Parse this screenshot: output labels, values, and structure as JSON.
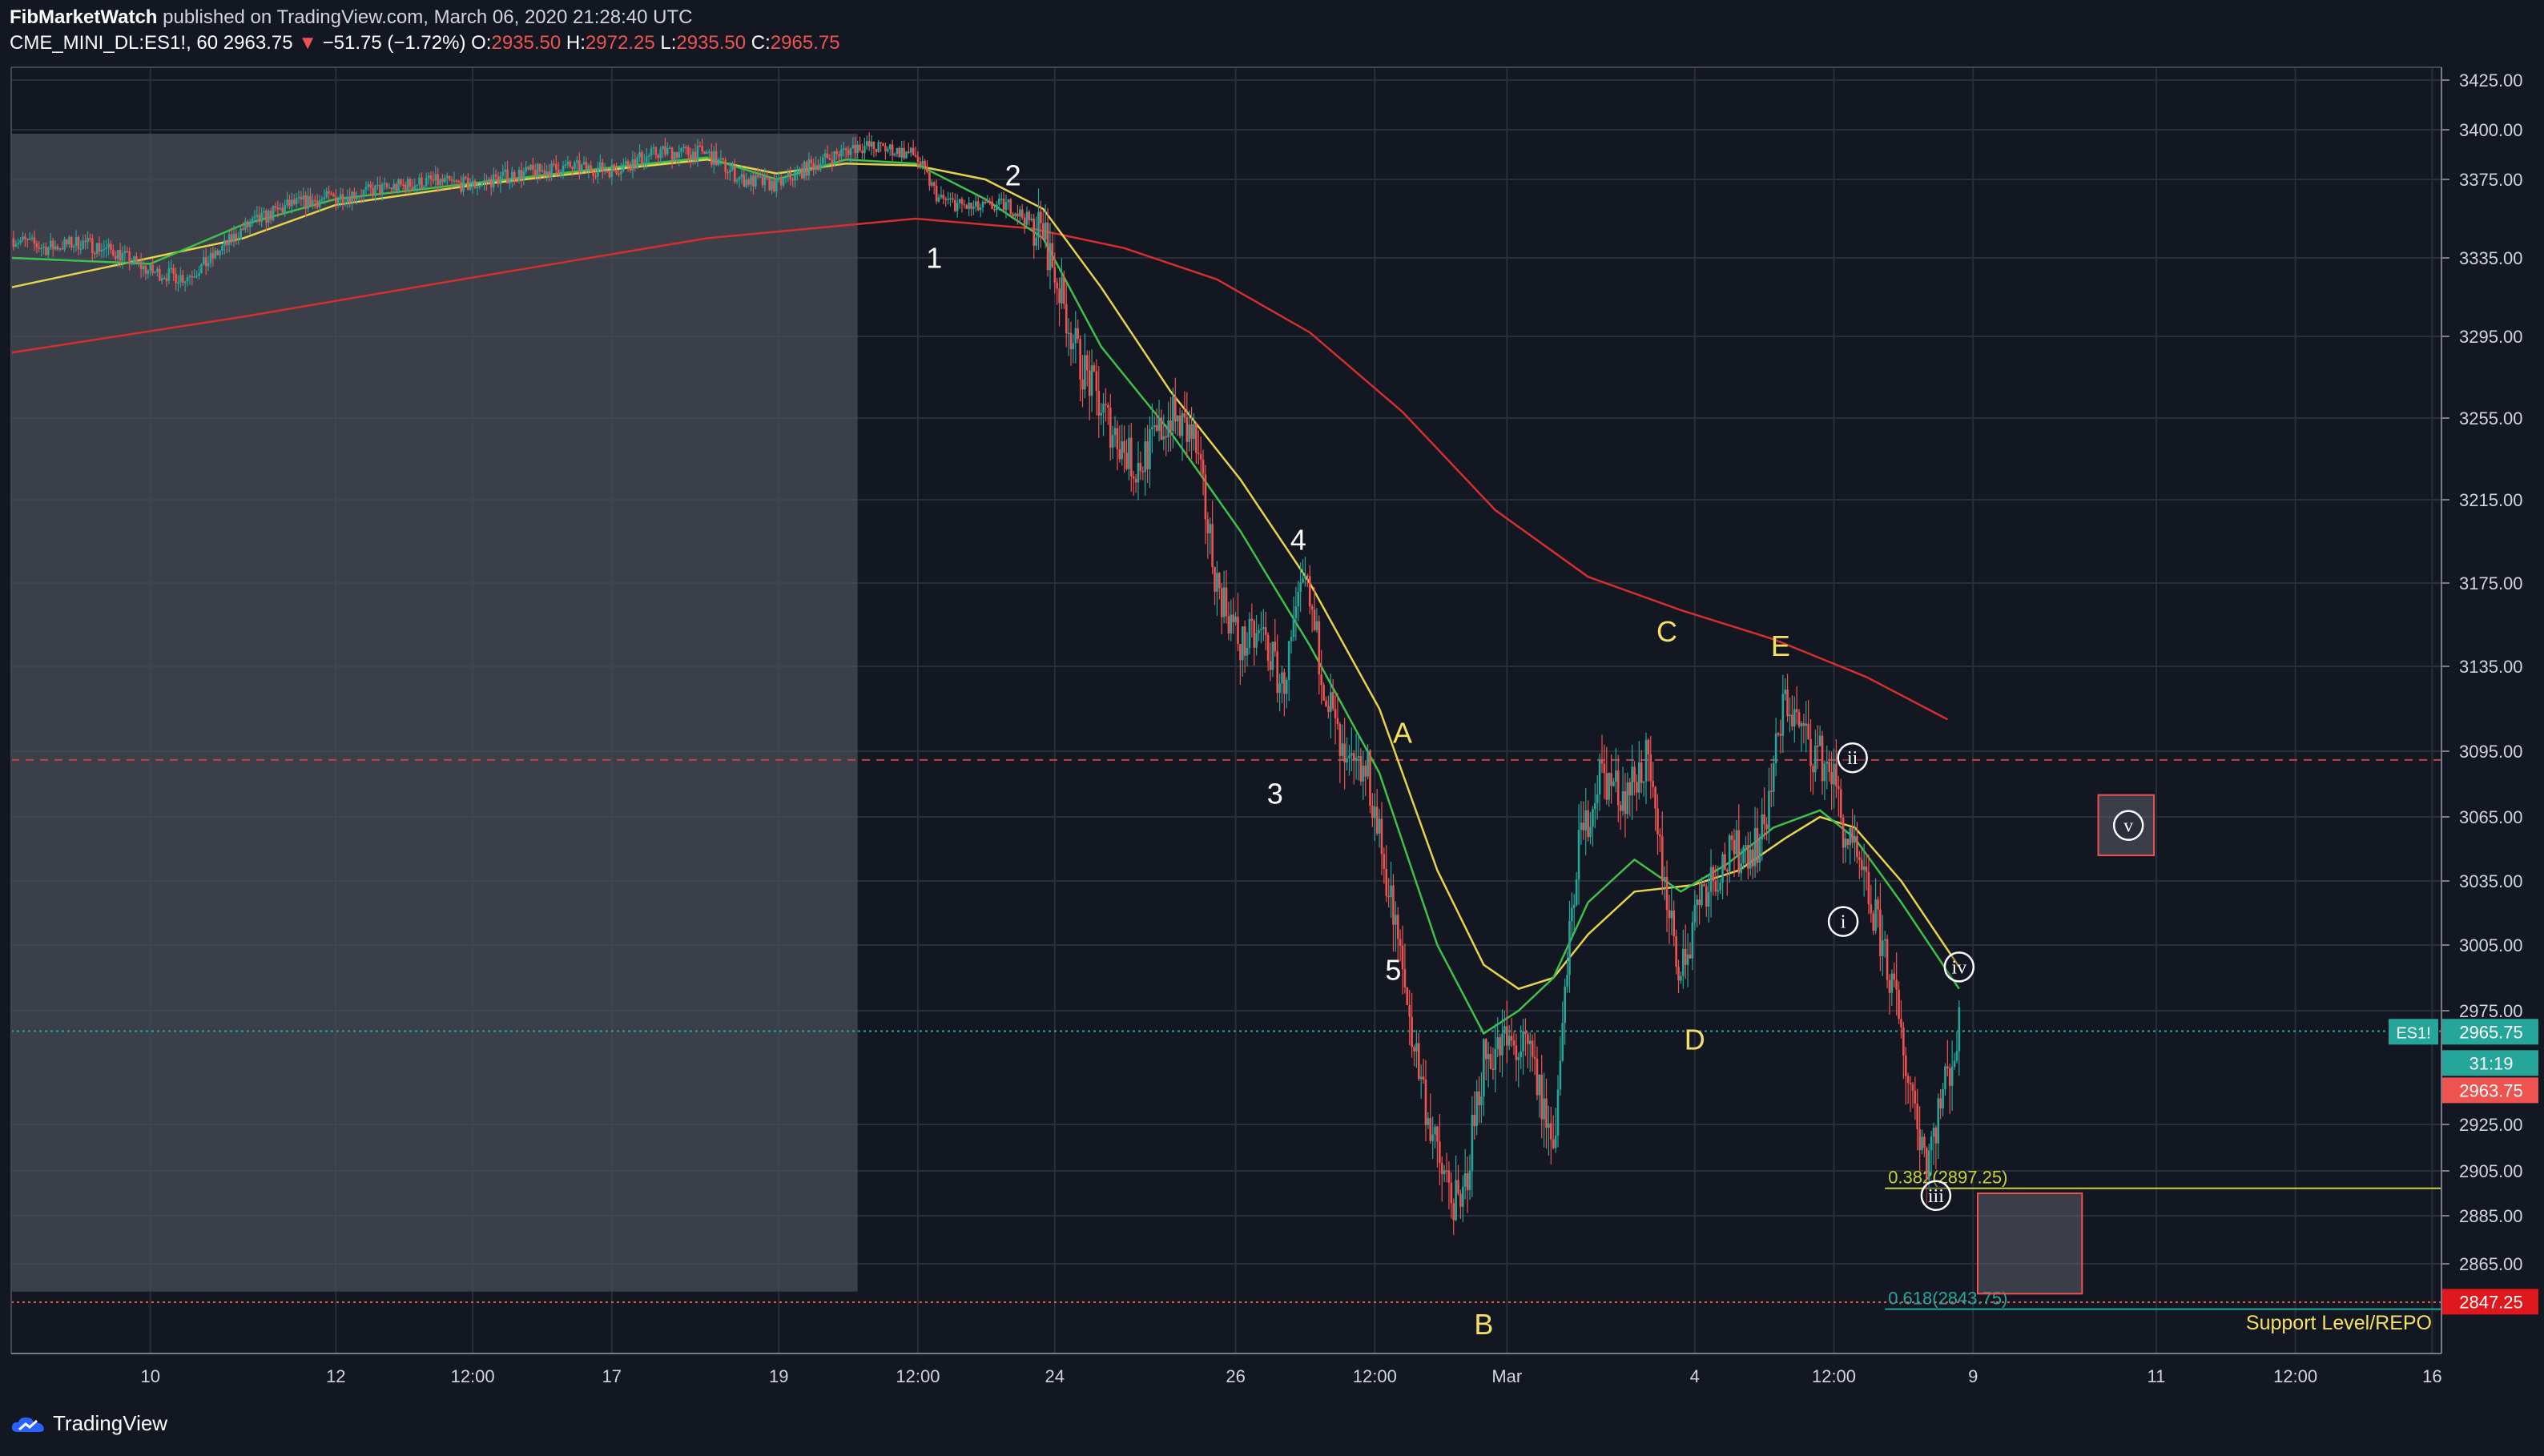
{
  "header": {
    "author": "FibMarketWatch",
    "published_text": "published on TradingView.com, March 06, 2020 21:28:40 UTC",
    "symbol": "CME_MINI_DL:ES1!, 60",
    "last": "2963.75",
    "change": "−51.75 (−1.72%)",
    "o_label": "O:",
    "o_value": "2935.50",
    "h_label": "H:",
    "h_value": "2972.25",
    "l_label": "L:",
    "l_value": "2935.50",
    "c_label": "C:",
    "c_value": "2965.75"
  },
  "footer": {
    "brand": "TradingView"
  },
  "colors": {
    "up": "#26a69a",
    "down": "#ef5350",
    "ma_red": "#d32f2f",
    "ma_yellow": "#e6d34c",
    "ma_green": "#3cc24a",
    "background": "#131722"
  },
  "chart_data": {
    "type": "candlestick",
    "ylim": [
      2825,
      3430
    ],
    "y_ticks": [
      3425,
      3400,
      3375,
      3335,
      3295,
      3255,
      3215,
      3175,
      3135,
      3095,
      3065,
      3035,
      3005,
      2975,
      2925,
      2905,
      2885,
      2865
    ],
    "y_tick_labels": [
      "3425.00",
      "3400.00",
      "3375.00",
      "3335.00",
      "3295.00",
      "3255.00",
      "3215.00",
      "3175.00",
      "3135.00",
      "3095.00",
      "3065.00",
      "3035.00",
      "3005.00",
      "2975.00",
      "2925.00",
      "2905.00",
      "2885.00",
      "2865.00"
    ],
    "x_ticks": [
      {
        "label": "10",
        "t": 60
      },
      {
        "label": "12",
        "t": 140
      },
      {
        "label": "12:00",
        "t": 199
      },
      {
        "label": "17",
        "t": 259
      },
      {
        "label": "19",
        "t": 331
      },
      {
        "label": "12:00",
        "t": 391
      },
      {
        "label": "24",
        "t": 450
      },
      {
        "label": "26",
        "t": 528
      },
      {
        "label": "12:00",
        "t": 588
      },
      {
        "label": "Mar",
        "t": 645
      },
      {
        "label": "4",
        "t": 726
      },
      {
        "label": "12:00",
        "t": 786
      },
      {
        "label": "9",
        "t": 846
      },
      {
        "label": "11",
        "t": 925
      },
      {
        "label": "12:00",
        "t": 985
      },
      {
        "label": "16",
        "t": 1044
      }
    ],
    "price_path": [
      [
        0,
        3345
      ],
      [
        15,
        3340
      ],
      [
        30,
        3343
      ],
      [
        45,
        3338
      ],
      [
        60,
        3328
      ],
      [
        75,
        3325
      ],
      [
        85,
        3333
      ],
      [
        100,
        3350
      ],
      [
        120,
        3362
      ],
      [
        140,
        3366
      ],
      [
        160,
        3370
      ],
      [
        180,
        3374
      ],
      [
        199,
        3372
      ],
      [
        215,
        3377
      ],
      [
        240,
        3381
      ],
      [
        259,
        3380
      ],
      [
        280,
        3389
      ],
      [
        300,
        3388
      ],
      [
        315,
        3375
      ],
      [
        330,
        3372
      ],
      [
        345,
        3382
      ],
      [
        365,
        3392
      ],
      [
        380,
        3390
      ],
      [
        390,
        3387
      ],
      [
        400,
        3365
      ],
      [
        415,
        3360
      ],
      [
        430,
        3362
      ],
      [
        445,
        3348
      ],
      [
        460,
        3285
      ],
      [
        472,
        3255
      ],
      [
        485,
        3230
      ],
      [
        500,
        3256
      ],
      [
        510,
        3245
      ],
      [
        520,
        3175
      ],
      [
        530,
        3145
      ],
      [
        540,
        3150
      ],
      [
        548,
        3125
      ],
      [
        558,
        3175
      ],
      [
        565,
        3135
      ],
      [
        575,
        3085
      ],
      [
        585,
        3085
      ],
      [
        595,
        3025
      ],
      [
        605,
        2960
      ],
      [
        615,
        2910
      ],
      [
        625,
        2885
      ],
      [
        635,
        2955
      ],
      [
        645,
        2960
      ],
      [
        655,
        2955
      ],
      [
        665,
        2915
      ],
      [
        675,
        3045
      ],
      [
        685,
        3085
      ],
      [
        695,
        3075
      ],
      [
        705,
        3090
      ],
      [
        710,
        3055
      ],
      [
        720,
        2990
      ],
      [
        728,
        3030
      ],
      [
        740,
        3045
      ],
      [
        755,
        3055
      ],
      [
        765,
        3120
      ],
      [
        775,
        3098
      ],
      [
        785,
        3087
      ],
      [
        790,
        3060
      ],
      [
        800,
        3030
      ],
      [
        808,
        3002
      ],
      [
        818,
        2948
      ],
      [
        826,
        2910
      ],
      [
        832,
        2935
      ],
      [
        840,
        2966
      ]
    ],
    "ma_red": [
      [
        0,
        3287
      ],
      [
        100,
        3305
      ],
      [
        199,
        3325
      ],
      [
        300,
        3345
      ],
      [
        390,
        3355
      ],
      [
        440,
        3350
      ],
      [
        480,
        3340
      ],
      [
        520,
        3324
      ],
      [
        560,
        3297
      ],
      [
        600,
        3258
      ],
      [
        640,
        3210
      ],
      [
        680,
        3178
      ],
      [
        720,
        3162
      ],
      [
        760,
        3148
      ],
      [
        800,
        3130
      ],
      [
        835,
        3110
      ]
    ],
    "ma_yellow": [
      [
        0,
        3320
      ],
      [
        60,
        3335
      ],
      [
        100,
        3345
      ],
      [
        140,
        3362
      ],
      [
        199,
        3372
      ],
      [
        259,
        3380
      ],
      [
        300,
        3385
      ],
      [
        330,
        3378
      ],
      [
        360,
        3383
      ],
      [
        390,
        3382
      ],
      [
        420,
        3375
      ],
      [
        445,
        3360
      ],
      [
        470,
        3320
      ],
      [
        500,
        3268
      ],
      [
        530,
        3225
      ],
      [
        560,
        3175
      ],
      [
        590,
        3115
      ],
      [
        615,
        3040
      ],
      [
        635,
        2996
      ],
      [
        650,
        2985
      ],
      [
        665,
        2990
      ],
      [
        680,
        3010
      ],
      [
        700,
        3030
      ],
      [
        725,
        3033
      ],
      [
        745,
        3040
      ],
      [
        765,
        3055
      ],
      [
        780,
        3065
      ],
      [
        795,
        3060
      ],
      [
        815,
        3035
      ],
      [
        840,
        2995
      ]
    ],
    "ma_green": [
      [
        0,
        3335
      ],
      [
        60,
        3332
      ],
      [
        100,
        3352
      ],
      [
        140,
        3365
      ],
      [
        199,
        3373
      ],
      [
        259,
        3381
      ],
      [
        300,
        3386
      ],
      [
        330,
        3375
      ],
      [
        360,
        3385
      ],
      [
        390,
        3383
      ],
      [
        420,
        3365
      ],
      [
        445,
        3345
      ],
      [
        470,
        3290
      ],
      [
        500,
        3248
      ],
      [
        530,
        3200
      ],
      [
        560,
        3145
      ],
      [
        590,
        3085
      ],
      [
        615,
        3005
      ],
      [
        635,
        2965
      ],
      [
        650,
        2975
      ],
      [
        665,
        2990
      ],
      [
        680,
        3025
      ],
      [
        700,
        3045
      ],
      [
        720,
        3030
      ],
      [
        740,
        3043
      ],
      [
        760,
        3060
      ],
      [
        780,
        3068
      ],
      [
        795,
        3055
      ],
      [
        815,
        3025
      ],
      [
        840,
        2985
      ]
    ],
    "hlines": [
      {
        "price": 3091,
        "style": "dashed",
        "color": "#c0414a"
      },
      {
        "price": 2966,
        "style": "dotted",
        "color": "#26a69a"
      },
      {
        "price": 2847,
        "style": "dotted",
        "color": "#ef5350"
      }
    ],
    "fib_lines": [
      {
        "price": 2897.25,
        "label": "0.382(2897.25)",
        "color": "#c6d13a",
        "t_from": 808
      },
      {
        "price": 2843.75,
        "label": "0.618(2843.75)",
        "color": "#26a69a",
        "t_from": 808
      }
    ],
    "support_label": "Support Level/REPO",
    "shaded_region": {
      "t_from": 0,
      "t_to": 365,
      "price_top": 3398,
      "price_bottom": 2852
    },
    "boxes": [
      {
        "t_from": 848,
        "t_to": 893,
        "price_top": 2895,
        "price_bottom": 2851
      },
      {
        "t_from": 900,
        "t_to": 924,
        "price_top": 3075,
        "price_bottom": 3047
      }
    ],
    "labels": [
      {
        "text": "1",
        "t": 398,
        "price": 3330,
        "color": "#ffffff"
      },
      {
        "text": "2",
        "t": 432,
        "price": 3372,
        "color": "#ffffff"
      },
      {
        "text": "3",
        "t": 545,
        "price": 3071,
        "color": "#ffffff"
      },
      {
        "text": "4",
        "t": 555,
        "price": 3191,
        "color": "#ffffff"
      },
      {
        "text": "5",
        "t": 596,
        "price": 2989,
        "color": "#ffffff"
      },
      {
        "text": "A",
        "t": 600,
        "price": 3099,
        "color": "#f5e063"
      },
      {
        "text": "B",
        "t": 635,
        "price": 2832,
        "color": "#f5e063"
      },
      {
        "text": "C",
        "t": 714,
        "price": 3147,
        "color": "#f5e063"
      },
      {
        "text": "D",
        "t": 726,
        "price": 2958,
        "color": "#f5e063"
      },
      {
        "text": "E",
        "t": 763,
        "price": 3140,
        "color": "#f5e063"
      }
    ],
    "circle_labels": [
      {
        "text": "ii",
        "t": 794,
        "price": 3092
      },
      {
        "text": "i",
        "t": 790,
        "price": 3016
      },
      {
        "text": "iv",
        "t": 840,
        "price": 2995
      },
      {
        "text": "iii",
        "t": 830,
        "price": 2894
      },
      {
        "text": "v",
        "t": 913,
        "price": 3061
      }
    ],
    "price_tags": [
      {
        "price": 2965.75,
        "label": "2965.75",
        "symbol": "ES1!",
        "color": "#26a69a"
      },
      {
        "price": 2952,
        "label": "31:19",
        "color": "#26a69a"
      },
      {
        "price": 2940,
        "label": "2963.75",
        "color": "#ef5350"
      },
      {
        "price": 2847.25,
        "label": "2847.25",
        "color": "#e0171d"
      }
    ]
  }
}
